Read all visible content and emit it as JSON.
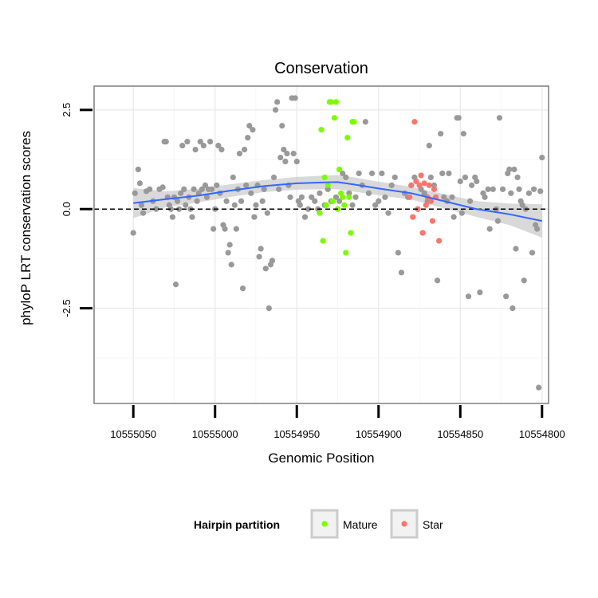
{
  "chart_data": {
    "type": "scatter",
    "title": "Conservation",
    "xlabel": "Genomic Position",
    "ylabel": "phyloP LRT conservation scores",
    "x_reversed": true,
    "xlim": [
      10555074,
      10554796
    ],
    "ylim": [
      -4.9,
      3.1
    ],
    "x_ticks": [
      10555050,
      10555000,
      10554950,
      10554900,
      10554850,
      10554800
    ],
    "x_tick_labels": [
      "10555050",
      "10555000",
      "10554950",
      "10554900",
      "10554850",
      "10554800"
    ],
    "y_ticks": [
      2.5,
      0.0,
      -2.5
    ],
    "y_tick_labels": [
      "2.5",
      "0.0",
      "-2.5"
    ],
    "grid": true,
    "reference_line": {
      "y": 0,
      "style": "dashed"
    },
    "legend": {
      "title": "Hairpin partition",
      "placement": "bottom",
      "entries": [
        {
          "name": "Mature",
          "color": "#7cfc00"
        },
        {
          "name": "Star",
          "color": "#f8766d"
        }
      ]
    },
    "colors": {
      "other": "#999999",
      "smooth": "#3366ff",
      "band": "#cccccc"
    },
    "series": [
      {
        "name": "Other",
        "color": "#999999",
        "points": [
          [
            10555050,
            -0.6
          ],
          [
            10555049,
            0.4
          ],
          [
            10555047,
            1.0
          ],
          [
            10555046,
            0.65
          ],
          [
            10555045,
            0.1
          ],
          [
            10555044,
            -0.1
          ],
          [
            10555042,
            0.45
          ],
          [
            10555040,
            0.5
          ],
          [
            10555038,
            0.2
          ],
          [
            10555036,
            0.0
          ],
          [
            10555034,
            0.5
          ],
          [
            10555032,
            0.55
          ],
          [
            10555031,
            1.7
          ],
          [
            10555030,
            1.7
          ],
          [
            10555029,
            0.3
          ],
          [
            10555028,
            0.1
          ],
          [
            10555027,
            0.0
          ],
          [
            10555026,
            -0.2
          ],
          [
            10555025,
            0.3
          ],
          [
            10555024,
            -1.9
          ],
          [
            10555023,
            0.2
          ],
          [
            10555022,
            0.0
          ],
          [
            10555021,
            0.4
          ],
          [
            10555020,
            1.6
          ],
          [
            10555019,
            0.5
          ],
          [
            10555018,
            0.1
          ],
          [
            10555017,
            1.7
          ],
          [
            10555016,
            0.3
          ],
          [
            10555015,
            0.0
          ],
          [
            10555014,
            -0.2
          ],
          [
            10555013,
            0.5
          ],
          [
            10555012,
            1.5
          ],
          [
            10555011,
            0.2
          ],
          [
            10555010,
            0.4
          ],
          [
            10555009,
            1.7
          ],
          [
            10555008,
            0.5
          ],
          [
            10555007,
            1.6
          ],
          [
            10555006,
            0.6
          ],
          [
            10555005,
            0.3
          ],
          [
            10555004,
            0.5
          ],
          [
            10555003,
            1.7
          ],
          [
            10555002,
            0.5
          ],
          [
            10555001,
            -0.5
          ],
          [
            10555000,
            0.0
          ],
          [
            10554999,
            0.6
          ],
          [
            10554998,
            1.6
          ],
          [
            10554997,
            0.4
          ],
          [
            10554996,
            1.5
          ],
          [
            10554995,
            -0.4
          ],
          [
            10554994,
            -0.5
          ],
          [
            10554993,
            0.2
          ],
          [
            10554992,
            -1.1
          ],
          [
            10554991,
            -0.9
          ],
          [
            10554990,
            -1.4
          ],
          [
            10554989,
            0.8
          ],
          [
            10554988,
            0.1
          ],
          [
            10554987,
            -0.5
          ],
          [
            10554986,
            0.5
          ],
          [
            10554985,
            1.4
          ],
          [
            10554984,
            0.2
          ],
          [
            10554983,
            -2.0
          ],
          [
            10554982,
            1.5
          ],
          [
            10554981,
            0.6
          ],
          [
            10554980,
            1.8
          ],
          [
            10554979,
            2.1
          ],
          [
            10554978,
            0.4
          ],
          [
            10554977,
            2.0
          ],
          [
            10554976,
            -0.2
          ],
          [
            10554975,
            0.1
          ],
          [
            10554974,
            0.6
          ],
          [
            10554973,
            -1.2
          ],
          [
            10554972,
            -1.0
          ],
          [
            10554971,
            0.2
          ],
          [
            10554970,
            0.5
          ],
          [
            10554969,
            -1.5
          ],
          [
            10554968,
            -0.1
          ],
          [
            10554967,
            -2.5
          ],
          [
            10554966,
            -1.4
          ],
          [
            10554965,
            -1.3
          ],
          [
            10554964,
            0.8
          ],
          [
            10554963,
            2.5
          ],
          [
            10554962,
            2.7
          ],
          [
            10554961,
            0.5
          ],
          [
            10554960,
            1.3
          ],
          [
            10554959,
            2.1
          ],
          [
            10554958,
            1.5
          ],
          [
            10554957,
            1.2
          ],
          [
            10554956,
            1.4
          ],
          [
            10554955,
            0.6
          ],
          [
            10554954,
            0.3
          ],
          [
            10554953,
            2.8
          ],
          [
            10554952,
            1.4
          ],
          [
            10554951,
            2.8
          ],
          [
            10554950,
            1.2
          ],
          [
            10554949,
            0.2
          ],
          [
            10554948,
            0.1
          ],
          [
            10554947,
            0.3
          ],
          [
            10554945,
            -0.2
          ],
          [
            10554943,
            0.0
          ],
          [
            10554941,
            0.3
          ],
          [
            10554939,
            0.2
          ],
          [
            10554937,
            0.0
          ],
          [
            10554936,
            0.4
          ],
          [
            10554933,
            0.1
          ],
          [
            10554931,
            0.5
          ],
          [
            10554929,
            0.2
          ],
          [
            10554926,
            0.3
          ],
          [
            10554924,
            0.2
          ],
          [
            10554922,
            0.9
          ],
          [
            10554920,
            0.8
          ],
          [
            10554918,
            0.4
          ],
          [
            10554916,
            0.1
          ],
          [
            10554914,
            0.3
          ],
          [
            10554912,
            0.9
          ],
          [
            10554910,
            0.6
          ],
          [
            10554908,
            2.2
          ],
          [
            10554906,
            0.4
          ],
          [
            10554904,
            0.9
          ],
          [
            10554902,
            0.1
          ],
          [
            10554900,
            0.2
          ],
          [
            10554898,
            0.9
          ],
          [
            10554896,
            0.3
          ],
          [
            10554894,
            -0.1
          ],
          [
            10554892,
            0.6
          ],
          [
            10554890,
            0.8
          ],
          [
            10554888,
            -1.1
          ],
          [
            10554886,
            -1.6
          ],
          [
            10554884,
            0.4
          ],
          [
            10554882,
            0.3
          ],
          [
            10554880,
            0.6
          ],
          [
            10554878,
            0.8
          ],
          [
            10554876,
            0.0
          ],
          [
            10554874,
            0.5
          ],
          [
            10554872,
            0.4
          ],
          [
            10554870,
            0.2
          ],
          [
            10554869,
            1.6
          ],
          [
            10554868,
            0.8
          ],
          [
            10554866,
            0.6
          ],
          [
            10554864,
            -1.8
          ],
          [
            10554862,
            1.9
          ],
          [
            10554861,
            0.9
          ],
          [
            10554860,
            0.3
          ],
          [
            10554858,
            0.2
          ],
          [
            10554857,
            0.9
          ],
          [
            10554855,
            0.3
          ],
          [
            10554854,
            -0.2
          ],
          [
            10554852,
            2.3
          ],
          [
            10554851,
            2.3
          ],
          [
            10554850,
            0.7
          ],
          [
            10554849,
            -0.1
          ],
          [
            10554848,
            1.9
          ],
          [
            10554847,
            0.8
          ],
          [
            10554845,
            -2.2
          ],
          [
            10554844,
            0.2
          ],
          [
            10554843,
            0.6
          ],
          [
            10554841,
            0.8
          ],
          [
            10554840,
            0.7
          ],
          [
            10554838,
            -2.1
          ],
          [
            10554836,
            0.4
          ],
          [
            10554835,
            0.3
          ],
          [
            10554833,
            0.5
          ],
          [
            10554832,
            -0.5
          ],
          [
            10554830,
            0.5
          ],
          [
            10554828,
            0.0
          ],
          [
            10554827,
            -0.3
          ],
          [
            10554826,
            2.3
          ],
          [
            10554824,
            0.5
          ],
          [
            10554822,
            -2.2
          ],
          [
            10554821,
            0.9
          ],
          [
            10554820,
            1.0
          ],
          [
            10554819,
            0.4
          ],
          [
            10554818,
            -2.5
          ],
          [
            10554817,
            1.0
          ],
          [
            10554816,
            -1.0
          ],
          [
            10554815,
            0.8
          ],
          [
            10554814,
            0.5
          ],
          [
            10554813,
            0.2
          ],
          [
            10554812,
            0.1
          ],
          [
            10554811,
            -1.8
          ],
          [
            10554810,
            0.0
          ],
          [
            10554808,
            0.4
          ],
          [
            10554806,
            -1.1
          ],
          [
            10554805,
            0.5
          ],
          [
            10554804,
            -0.4
          ],
          [
            10554803,
            -0.5
          ],
          [
            10554802,
            -4.5
          ],
          [
            10554801,
            0.45
          ],
          [
            10554800,
            1.3
          ]
        ]
      },
      {
        "name": "Mature",
        "color": "#7cfc00",
        "points": [
          [
            10554936,
            -0.1
          ],
          [
            10554935,
            2.0
          ],
          [
            10554934,
            -0.8
          ],
          [
            10554933,
            0.8
          ],
          [
            10554932,
            0.1
          ],
          [
            10554931,
            0.6
          ],
          [
            10554930,
            2.7
          ],
          [
            10554929,
            2.7
          ],
          [
            10554928,
            0.2
          ],
          [
            10554927,
            2.3
          ],
          [
            10554926,
            2.7
          ],
          [
            10554925,
            0.0
          ],
          [
            10554924,
            1.0
          ],
          [
            10554923,
            0.4
          ],
          [
            10554922,
            0.3
          ],
          [
            10554921,
            0.1
          ],
          [
            10554920,
            -1.1
          ],
          [
            10554919,
            1.8
          ],
          [
            10554918,
            0.3
          ],
          [
            10554917,
            -0.6
          ],
          [
            10554916,
            2.2
          ],
          [
            10554915,
            2.2
          ]
        ]
      },
      {
        "name": "Star",
        "color": "#f8766d",
        "points": [
          [
            10554881,
            0.3
          ],
          [
            10554880,
            0.6
          ],
          [
            10554879,
            -0.2
          ],
          [
            10554878,
            2.2
          ],
          [
            10554877,
            0.7
          ],
          [
            10554876,
            0.0
          ],
          [
            10554875,
            0.6
          ],
          [
            10554874,
            0.85
          ],
          [
            10554873,
            -0.6
          ],
          [
            10554872,
            0.65
          ],
          [
            10554871,
            0.1
          ],
          [
            10554870,
            0.3
          ],
          [
            10554869,
            0.6
          ],
          [
            10554868,
            0.2
          ],
          [
            10554867,
            -0.3
          ],
          [
            10554866,
            0.5
          ],
          [
            10554865,
            0.3
          ],
          [
            10554863,
            -0.8
          ]
        ]
      }
    ],
    "smooth": [
      [
        10555050,
        0.15
      ],
      [
        10555030,
        0.25
      ],
      [
        10555010,
        0.34
      ],
      [
        10554990,
        0.47
      ],
      [
        10554970,
        0.58
      ],
      [
        10554950,
        0.65
      ],
      [
        10554935,
        0.67
      ],
      [
        10554925,
        0.68
      ],
      [
        10554915,
        0.62
      ],
      [
        10554900,
        0.52
      ],
      [
        10554880,
        0.4
      ],
      [
        10554860,
        0.2
      ],
      [
        10554840,
        0.0
      ],
      [
        10554820,
        -0.13
      ],
      [
        10554800,
        -0.3
      ]
    ],
    "band_halfwidth": [
      0.38,
      0.2,
      0.17,
      0.16,
      0.15,
      0.16,
      0.17,
      0.18,
      0.18,
      0.17,
      0.16,
      0.18,
      0.2,
      0.27,
      0.42
    ]
  }
}
